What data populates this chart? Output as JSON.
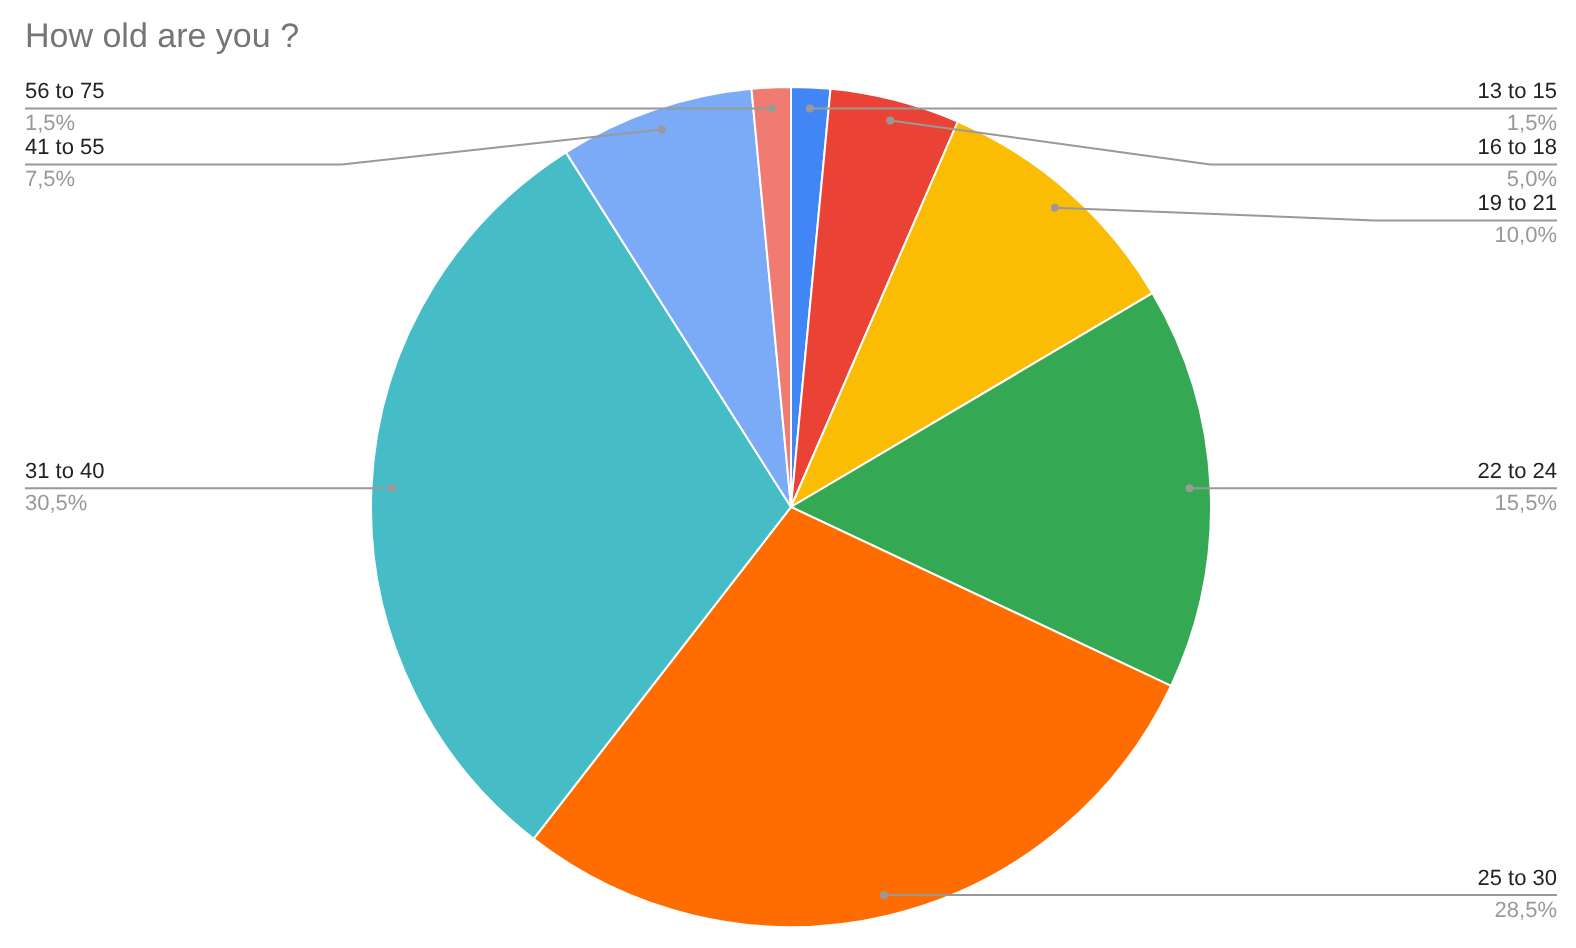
{
  "chart_data": {
    "type": "pie",
    "title": "How old are you ?",
    "categories": [
      "13 to 15",
      "16 to 18",
      "19 to 21",
      "22 to 24",
      "25 to 30",
      "31 to 40",
      "41 to 55",
      "56 to 75"
    ],
    "values": [
      1.5,
      5.0,
      10.0,
      15.5,
      28.5,
      30.5,
      7.5,
      1.5
    ],
    "value_labels": [
      "1,5%",
      "5,0%",
      "10,0%",
      "15,5%",
      "28,5%",
      "30,5%",
      "7,5%",
      "1,5%"
    ],
    "colors": [
      "#4285f4",
      "#ea4335",
      "#fbbc04",
      "#34a853",
      "#ff6d01",
      "#46bdc6",
      "#7baaf7",
      "#f07b72"
    ]
  }
}
